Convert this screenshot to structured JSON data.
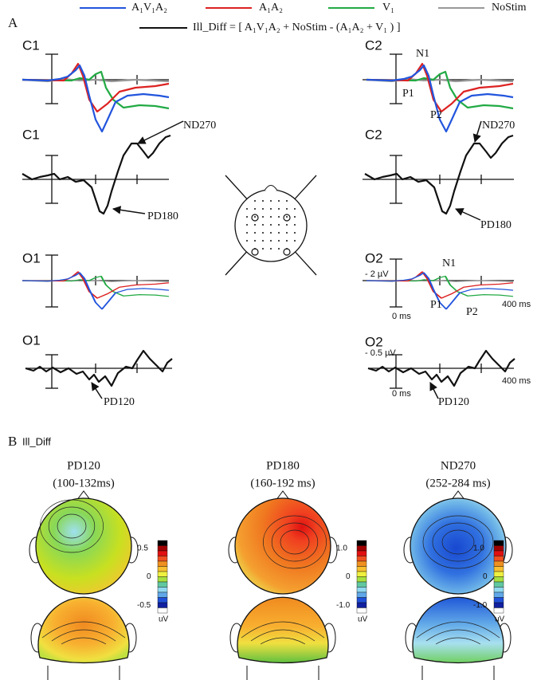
{
  "legend": [
    {
      "name": "A₁V₁A₂",
      "color": "#2255dd"
    },
    {
      "name": "A₁A₂",
      "color": "#dd2222"
    },
    {
      "name": "V₁",
      "color": "#22aa44"
    },
    {
      "name": "NoStim",
      "color": "#999999"
    }
  ],
  "panel_a": {
    "label": "A",
    "formula": "Ill_Diff = [ A₁V₁A₂  + NoStim - (A₁A₂ + V₁ ) ]",
    "sites": [
      "C1",
      "C1",
      "O1",
      "O1",
      "C2",
      "C2",
      "O2",
      "O2"
    ],
    "annotations": [
      "N1",
      "P1",
      "P2",
      "ND270",
      "PD180",
      "ND270",
      "PD180",
      "- 2 µV",
      "N1",
      "P1",
      "P2",
      "0 ms",
      "400 ms",
      "- 0.5 µV",
      "0 ms",
      "400 ms",
      "PD120",
      "PD120"
    ]
  },
  "panel_b": {
    "label": "B",
    "subtitle": "Ill_Diff",
    "maps": [
      {
        "component": "PD120",
        "window": "(100-132ms)",
        "scale": [
          "0.5",
          "0",
          "-0.5"
        ],
        "unit": "uV"
      },
      {
        "component": "PD180",
        "window": "(160-192 ms)",
        "scale": [
          "1.0",
          "0",
          "-1.0"
        ],
        "unit": "uV"
      },
      {
        "component": "ND270",
        "window": "(252-284 ms)",
        "scale": [
          "1.0",
          "0",
          "-1.0"
        ],
        "unit": "uV"
      }
    ]
  }
}
